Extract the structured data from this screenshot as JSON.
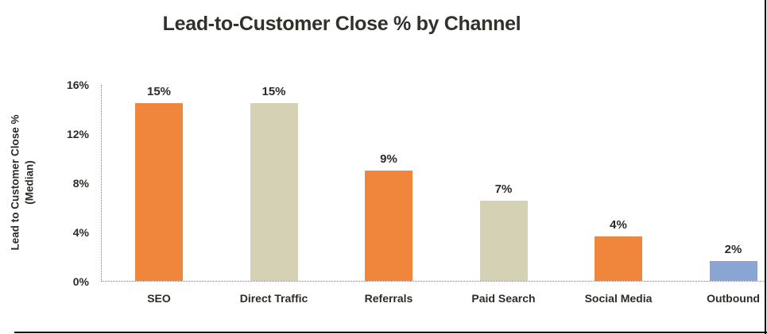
{
  "page": {
    "background": "#ffffff",
    "border_color": "#000000"
  },
  "chart_data": {
    "type": "bar",
    "title": "Lead-to-Customer Close % by Channel",
    "ylabel_line1": "Lead to Customer Close %",
    "ylabel_line2": "(Median)",
    "xlabel": "",
    "categories": [
      "SEO",
      "Direct Traffic",
      "Referrals",
      "Paid Search",
      "Social Media",
      "Outbound"
    ],
    "values": [
      15,
      15,
      9,
      7,
      4,
      2
    ],
    "data_labels": [
      "15%",
      "15%",
      "9%",
      "7%",
      "4%",
      "2%"
    ],
    "plotted_values": [
      14.5,
      14.5,
      9.0,
      6.6,
      3.7,
      1.7
    ],
    "bar_colors": [
      "#F0853C",
      "#D5D1B5",
      "#F0853C",
      "#D5D1B5",
      "#F0853C",
      "#8AA5D3"
    ],
    "y_ticks": [
      "16%",
      "12%",
      "8%",
      "4%",
      "0%"
    ],
    "ylim": [
      0,
      16
    ],
    "grid": false,
    "legend": "none",
    "axis_line_style": "dotted",
    "text_color": "#2e2b28"
  }
}
